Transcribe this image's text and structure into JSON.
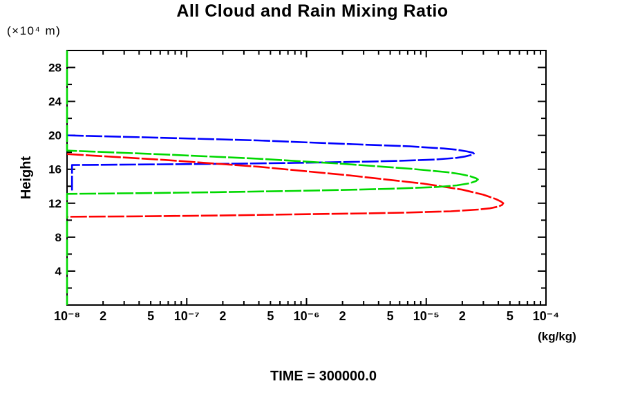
{
  "chart_data": {
    "type": "line",
    "title": "All Cloud and Rain Mixing Ratio",
    "caption": "TIME = 300000.0",
    "ylabel": "Height",
    "ylabel_unit": "(×10⁴ m)",
    "xlabel_unit": "(kg/kg)",
    "x_scale": "log",
    "xlim": [
      1e-08,
      0.0001
    ],
    "ylim": [
      0,
      30
    ],
    "grid": false,
    "legend": "none",
    "x_tick_labels": [
      {
        "value": 1e-08,
        "label": "10⁻⁸"
      },
      {
        "value": 2e-08,
        "label": "2"
      },
      {
        "value": 5e-08,
        "label": "5"
      },
      {
        "value": 1e-07,
        "label": "10⁻⁷"
      },
      {
        "value": 2e-07,
        "label": "2"
      },
      {
        "value": 5e-07,
        "label": "5"
      },
      {
        "value": 1e-06,
        "label": "10⁻⁶"
      },
      {
        "value": 2e-06,
        "label": "2"
      },
      {
        "value": 5e-06,
        "label": "5"
      },
      {
        "value": 1e-05,
        "label": "10⁻⁵"
      },
      {
        "value": 2e-05,
        "label": "2"
      },
      {
        "value": 5e-05,
        "label": "5"
      },
      {
        "value": 0.0001,
        "label": "10⁻⁴"
      }
    ],
    "y_major_ticks": [
      4,
      8,
      12,
      16,
      20,
      24,
      28
    ],
    "y_minor_step": 2,
    "series": [
      {
        "name": "blue-profile",
        "color": "#0000ff",
        "points": [
          [
            1e-08,
            20.0
          ],
          [
            6.5e-08,
            19.7
          ],
          [
            3.9e-07,
            19.4
          ],
          [
            2e-06,
            19.0
          ],
          [
            7.3e-06,
            18.7
          ],
          [
            1.4e-05,
            18.45
          ],
          [
            1.8e-05,
            18.3
          ],
          [
            2.2e-05,
            18.1
          ],
          [
            2.45e-05,
            17.95
          ],
          [
            2.5e-05,
            17.85
          ],
          [
            2.4e-05,
            17.7
          ],
          [
            2.1e-05,
            17.5
          ],
          [
            1.8e-05,
            17.35
          ],
          [
            1.2e-05,
            17.15
          ],
          [
            6e-06,
            17.0
          ],
          [
            3.2e-06,
            16.9
          ],
          [
            8e-07,
            16.75
          ],
          [
            2.2e-07,
            16.65
          ],
          [
            5e-08,
            16.57
          ],
          [
            1.1e-08,
            16.5
          ],
          [
            1.1e-08,
            13.5
          ]
        ]
      },
      {
        "name": "red-profile",
        "color": "#ff0000",
        "points": [
          [
            1e-08,
            17.8
          ],
          [
            6.5e-08,
            17.1
          ],
          [
            4e-07,
            16.3
          ],
          [
            2.2e-06,
            15.3
          ],
          [
            9.6e-06,
            14.3
          ],
          [
            2e-05,
            13.6
          ],
          [
            3e-05,
            13.0
          ],
          [
            3.8e-05,
            12.5
          ],
          [
            4.2e-05,
            12.2
          ],
          [
            4.4e-05,
            12.0
          ],
          [
            4.3e-05,
            11.8
          ],
          [
            4e-05,
            11.6
          ],
          [
            3.4e-05,
            11.4
          ],
          [
            2.7e-05,
            11.25
          ],
          [
            1.6e-05,
            11.05
          ],
          [
            7e-06,
            10.9
          ],
          [
            3.1e-06,
            10.8
          ],
          [
            1e-06,
            10.7
          ],
          [
            1.8e-07,
            10.55
          ],
          [
            4e-08,
            10.45
          ],
          [
            1e-08,
            10.4
          ]
        ]
      },
      {
        "name": "green-profile",
        "color": "#00d800",
        "points": [
          [
            1e-08,
            30.0
          ],
          [
            1e-08,
            18.2
          ],
          [
            6.5e-08,
            17.75
          ],
          [
            3.9e-07,
            17.25
          ],
          [
            2e-06,
            16.65
          ],
          [
            7.5e-06,
            16.05
          ],
          [
            1.5e-05,
            15.65
          ],
          [
            1.9e-05,
            15.45
          ],
          [
            2.3e-05,
            15.2
          ],
          [
            2.6e-05,
            14.95
          ],
          [
            2.7e-05,
            14.8
          ],
          [
            2.6e-05,
            14.6
          ],
          [
            2.3e-05,
            14.35
          ],
          [
            1.8e-05,
            14.1
          ],
          [
            1.2e-05,
            13.9
          ],
          [
            5e-06,
            13.7
          ],
          [
            2.6e-06,
            13.6
          ],
          [
            8e-07,
            13.45
          ],
          [
            1.7e-07,
            13.3
          ],
          [
            4e-08,
            13.18
          ],
          [
            1e-08,
            13.1
          ],
          [
            1e-08,
            0.0
          ]
        ]
      }
    ]
  }
}
